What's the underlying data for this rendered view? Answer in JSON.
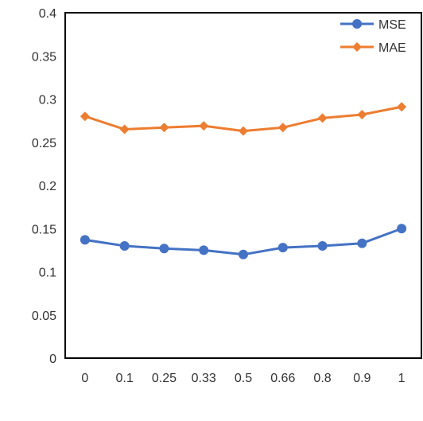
{
  "chart_data": {
    "type": "line",
    "categories": [
      "0",
      "0.1",
      "0.25",
      "0.33",
      "0.5",
      "0.66",
      "0.8",
      "0.9",
      "1"
    ],
    "ylim": [
      0,
      0.4
    ],
    "yticks": [
      "0",
      "0.05",
      "0.1",
      "0.15",
      "0.2",
      "0.25",
      "0.3",
      "0.35",
      "0.4"
    ],
    "grid": false,
    "legend_position": "top-right",
    "series": [
      {
        "name": "MSE",
        "color": "#4472C4",
        "marker": "circle",
        "values": [
          0.137,
          0.13,
          0.127,
          0.125,
          0.12,
          0.128,
          0.13,
          0.133,
          0.15
        ]
      },
      {
        "name": "MAE",
        "color": "#ED7D31",
        "marker": "diamond",
        "values": [
          0.28,
          0.265,
          0.267,
          0.269,
          0.263,
          0.267,
          0.278,
          0.282,
          0.291
        ]
      }
    ]
  }
}
